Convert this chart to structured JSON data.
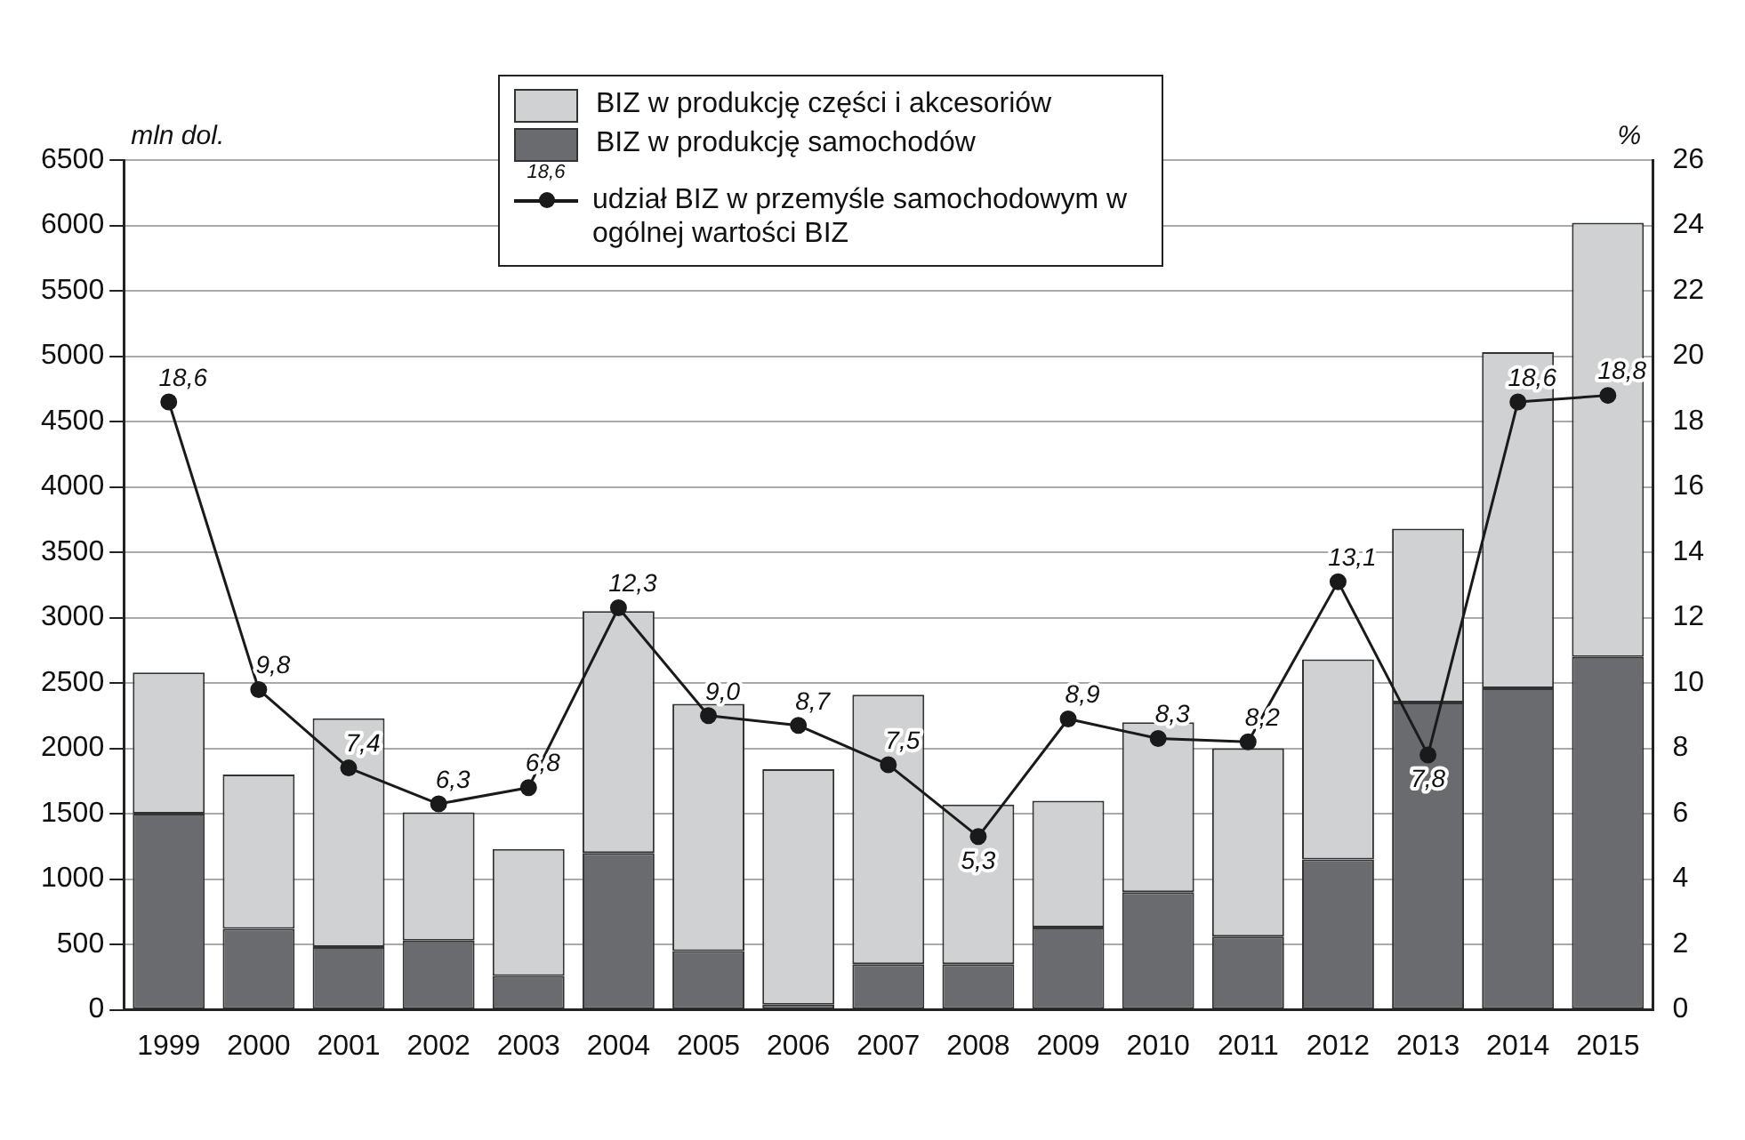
{
  "chart_data": {
    "type": "bar",
    "stacked": true,
    "ylabel": "mln dol.",
    "y2label": "%",
    "categories": [
      "1999",
      "2000",
      "2001",
      "2002",
      "2003",
      "2004",
      "2005",
      "2006",
      "2007",
      "2008",
      "2009",
      "2010",
      "2011",
      "2012",
      "2013",
      "2014",
      "2015"
    ],
    "series": [
      {
        "name": "BIZ w produkcję samochodów",
        "color": "#6a6b6f",
        "values": [
          1500,
          620,
          480,
          530,
          260,
          1200,
          450,
          40,
          350,
          350,
          630,
          900,
          560,
          1150,
          2350,
          2460,
          2700
        ]
      },
      {
        "name": "BIZ w produkcję części i akcesoriów",
        "color": "#d0d1d3",
        "values": [
          1080,
          1180,
          1750,
          980,
          970,
          1850,
          1890,
          1800,
          2060,
          1220,
          970,
          1300,
          1440,
          1530,
          1330,
          2570,
          3320
        ]
      },
      {
        "name": "udział BIZ w przemyśle samochodowym w ogólnej wartości BIZ",
        "type": "line",
        "axis": "y2",
        "color": "#1a1a1a",
        "marker": "circle",
        "line_style": "solid",
        "values": [
          18.6,
          9.8,
          7.4,
          6.3,
          6.8,
          12.3,
          9.0,
          8.7,
          7.5,
          5.3,
          8.9,
          8.3,
          8.2,
          13.1,
          7.8,
          18.6,
          18.8
        ],
        "value_labels": [
          "18,6",
          "9,8",
          "7,4",
          "6,3",
          "6,8",
          "12,3",
          "9,0",
          "8,7",
          "7,5",
          "5,3",
          "8,9",
          "8,3",
          "8,2",
          "13,1",
          "7,8",
          "18,6",
          "18,8"
        ]
      }
    ],
    "ylim": [
      0,
      6500
    ],
    "yticks": [
      0,
      500,
      1000,
      1500,
      2000,
      2500,
      3000,
      3500,
      4000,
      4500,
      5000,
      5500,
      6000,
      6500
    ],
    "y2lim": [
      0,
      26
    ],
    "y2ticks": [
      0,
      2,
      4,
      6,
      8,
      10,
      12,
      14,
      16,
      18,
      20,
      22,
      24,
      26
    ],
    "grid": "y",
    "legend": "top",
    "annotations": [
      "18,6"
    ]
  }
}
